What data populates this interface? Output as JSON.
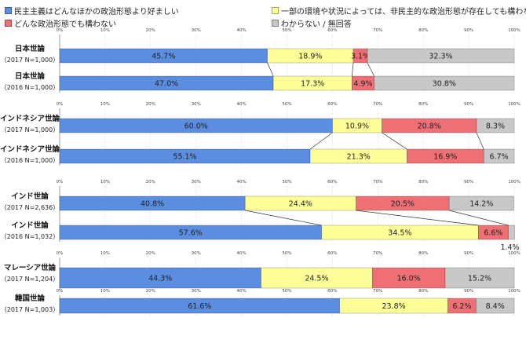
{
  "legend": [
    {
      "label": "民主主義はどんなほかの政治形態より好ましい",
      "color": "#5b8ee0"
    },
    {
      "label": "一部の環境や状況によっては、非民主的な政治形態が存在しても構わない",
      "color": "#ffff99"
    },
    {
      "label": "どんな政治形態でも構わない",
      "color": "#ee6f74"
    },
    {
      "label": "わからない / 無回答",
      "color": "#c8c8c8"
    }
  ],
  "chart_data": {
    "type": "bar",
    "orientation": "horizontal",
    "stacked": true,
    "xlim": [
      0,
      100
    ],
    "x_ticks": [
      "0%",
      "10%",
      "20%",
      "30%",
      "40%",
      "50%",
      "60%",
      "70%",
      "80%",
      "90%",
      "100%"
    ],
    "series_names": [
      "民主主義はどんなほかの政治形態より好ましい",
      "一部の環境や状況によっては、非民主的な政治形態が存在しても構わない",
      "どんな政治形態でも構わない",
      "わからない / 無回答"
    ],
    "series_colors": [
      "#5b8ee0",
      "#ffff99",
      "#ee6f74",
      "#c8c8c8"
    ],
    "groups": [
      {
        "bars": [
          {
            "label1": "日本世論",
            "label2": "（2017 N=1,000）",
            "values": [
              45.7,
              18.9,
              3.1,
              32.3
            ],
            "value_labels": [
              "45.7%",
              "18.9%",
              "3.1%",
              "32.3%"
            ]
          },
          {
            "label1": "日本世論",
            "label2": "（2016 N=1,000）",
            "values": [
              47.0,
              17.3,
              4.9,
              30.8
            ],
            "value_labels": [
              "47.0%",
              "17.3%",
              "4.9%",
              "30.8%"
            ]
          }
        ]
      },
      {
        "bars": [
          {
            "label1": "インドネシア世論",
            "label2": "（2017 N=1,000）",
            "values": [
              60.0,
              10.9,
              20.8,
              8.3
            ],
            "value_labels": [
              "60.0%",
              "10.9%",
              "20.8%",
              "8.3%"
            ]
          },
          {
            "label1": "インドネシア世論",
            "label2": "（2016 N=1,000）",
            "values": [
              55.1,
              21.3,
              16.9,
              6.7
            ],
            "value_labels": [
              "55.1%",
              "21.3%",
              "16.9%",
              "6.7%"
            ]
          }
        ]
      },
      {
        "bars": [
          {
            "label1": "インド世論",
            "label2": "（2017 N=2,636）",
            "values": [
              40.8,
              24.4,
              20.5,
              14.2
            ],
            "value_labels": [
              "40.8%",
              "24.4%",
              "20.5%",
              "14.2%"
            ]
          },
          {
            "label1": "インド世論",
            "label2": "（2016 N=1,032）",
            "values": [
              57.6,
              34.5,
              6.6,
              1.4
            ],
            "value_labels": [
              "57.6%",
              "34.5%",
              "6.6%",
              "1.4%"
            ]
          }
        ]
      },
      {
        "bars": [
          {
            "label1": "マレーシア世論",
            "label2": "（2017 N=1,204）",
            "values": [
              44.3,
              24.5,
              16.0,
              15.2
            ],
            "value_labels": [
              "44.3%",
              "24.5%",
              "16.0%",
              "15.2%"
            ]
          }
        ]
      },
      {
        "bars": [
          {
            "label1": "韓国世論",
            "label2": "（2017 N=1,003）",
            "values": [
              61.6,
              23.8,
              6.2,
              8.4
            ],
            "value_labels": [
              "61.6%",
              "23.8%",
              "6.2%",
              "8.4%"
            ]
          }
        ]
      }
    ]
  }
}
